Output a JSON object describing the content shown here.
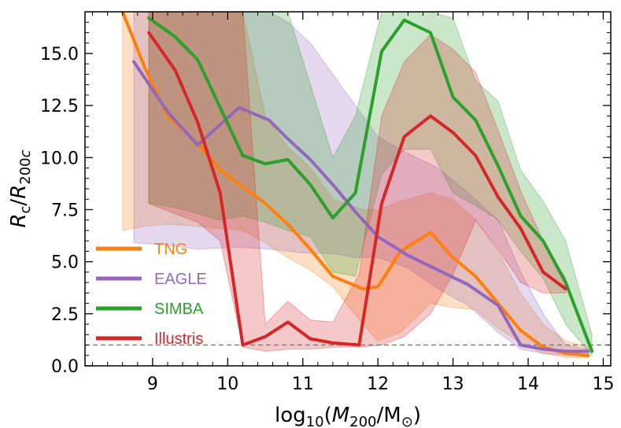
{
  "chart_data": {
    "type": "line",
    "xlabel": "log10(M200/M⊙)",
    "ylabel": "Rc/R200c",
    "xlim": [
      8.1,
      15.1
    ],
    "ylim": [
      0,
      17
    ],
    "x_ticks": [
      9,
      10,
      11,
      12,
      13,
      14,
      15
    ],
    "x_tick_labels": [
      "9",
      "10",
      "11",
      "12",
      "13",
      "14",
      "15"
    ],
    "y_ticks": [
      0,
      2.5,
      5,
      7.5,
      10,
      12.5,
      15
    ],
    "y_tick_labels": [
      "0.0",
      "2.5",
      "5.0",
      "7.5",
      "10.0",
      "12.5",
      "15.0"
    ],
    "reference_line": {
      "y": 1.0,
      "style": "dashed",
      "color": "#808080"
    },
    "legend_position": "lower-left",
    "series": [
      {
        "name": "TNG",
        "color": "#ff7f0e",
        "x": [
          8.6,
          8.9,
          9.2,
          9.6,
          9.9,
          10.2,
          10.5,
          10.8,
          11.1,
          11.4,
          11.8,
          12.0,
          12.3,
          12.7,
          13.0,
          13.3,
          13.6,
          13.9,
          14.2,
          14.5,
          14.8
        ],
        "y": [
          17.0,
          14.3,
          12.0,
          10.7,
          9.4,
          8.6,
          7.8,
          6.8,
          5.6,
          4.3,
          3.7,
          3.8,
          5.5,
          6.4,
          5.2,
          4.3,
          3.0,
          1.7,
          0.9,
          0.6,
          0.5
        ],
        "lower": [
          6.5,
          6.7,
          6.8,
          6.7,
          6.6,
          6.5,
          5.9,
          5.2,
          4.6,
          3.8,
          2.0,
          1.2,
          1.6,
          3.0,
          2.8,
          2.7,
          1.8,
          1.1,
          0.6,
          0.4,
          0.4
        ],
        "upper": [
          17.0,
          17.0,
          17.0,
          17.0,
          17.0,
          17.0,
          12.0,
          10.5,
          9.5,
          8.0,
          7.5,
          7.5,
          7.9,
          8.3,
          8.0,
          7.0,
          5.5,
          3.5,
          2.0,
          1.2,
          0.9
        ]
      },
      {
        "name": "EAGLE",
        "color": "#9467bd",
        "x": [
          8.75,
          9.2,
          9.6,
          10.15,
          10.55,
          10.8,
          11.1,
          11.4,
          11.7,
          12.0,
          12.4,
          12.8,
          13.2,
          13.6,
          13.9,
          14.2,
          14.5,
          14.8
        ],
        "y": [
          14.6,
          12.2,
          10.6,
          12.4,
          11.8,
          10.9,
          9.9,
          8.7,
          7.4,
          6.2,
          5.3,
          4.6,
          3.9,
          2.9,
          1.0,
          0.8,
          0.7,
          0.7
        ],
        "lower": [
          5.9,
          5.8,
          5.6,
          5.7,
          5.6,
          5.5,
          5.4,
          5.4,
          5.2,
          5.2,
          4.7,
          3.7,
          2.9,
          1.6,
          0.8,
          0.6,
          0.5,
          0.5
        ],
        "upper": [
          17.0,
          17.0,
          17.0,
          17.0,
          17.0,
          16.5,
          15.5,
          14.0,
          12.5,
          11.0,
          10.2,
          9.5,
          8.3,
          7.0,
          4.5,
          2.5,
          1.0,
          0.8
        ]
      },
      {
        "name": "SIMBA",
        "color": "#2ca02c",
        "x": [
          8.95,
          9.3,
          9.6,
          9.9,
          10.2,
          10.5,
          10.8,
          11.1,
          11.4,
          11.7,
          12.05,
          12.35,
          12.7,
          13.0,
          13.3,
          13.6,
          13.9,
          14.2,
          14.5,
          14.85
        ],
        "y": [
          16.7,
          15.8,
          14.7,
          12.4,
          10.1,
          9.7,
          9.9,
          8.7,
          7.1,
          8.3,
          15.1,
          16.6,
          16.0,
          12.9,
          11.8,
          9.6,
          7.2,
          6.0,
          4.0,
          0.7
        ],
        "lower": [
          7.8,
          7.6,
          7.3,
          7.0,
          7.2,
          6.9,
          6.5,
          6.2,
          4.5,
          4.3,
          9.2,
          10.4,
          10.4,
          8.3,
          7.7,
          7.0,
          5.5,
          4.2,
          2.0,
          0.5
        ],
        "upper": [
          17.0,
          17.0,
          17.0,
          17.0,
          17.0,
          17.0,
          17.0,
          13.5,
          10.0,
          12.0,
          17.0,
          17.0,
          17.0,
          16.7,
          13.7,
          12.7,
          9.4,
          7.9,
          6.0,
          1.5
        ]
      },
      {
        "name": "Illustris",
        "color": "#d62728",
        "x": [
          8.95,
          9.3,
          9.6,
          9.9,
          10.2,
          10.5,
          10.8,
          11.1,
          11.4,
          11.75,
          12.05,
          12.35,
          12.7,
          13.0,
          13.3,
          13.6,
          13.9,
          14.2,
          14.5
        ],
        "y": [
          16.0,
          14.2,
          11.7,
          8.3,
          1.0,
          1.4,
          2.1,
          1.3,
          1.1,
          1.0,
          7.8,
          11.0,
          12.0,
          11.2,
          10.1,
          8.1,
          6.6,
          4.5,
          3.7
        ],
        "lower": [
          7.8,
          7.3,
          6.9,
          6.0,
          0.9,
          0.7,
          0.8,
          0.8,
          0.9,
          0.9,
          1.0,
          1.4,
          2.5,
          4.4,
          7.0,
          5.6,
          4.0,
          3.5,
          3.5
        ],
        "upper": [
          17.0,
          17.0,
          17.0,
          17.0,
          17.0,
          2.0,
          3.1,
          2.2,
          2.1,
          4.4,
          12.0,
          14.6,
          15.9,
          15.2,
          14.1,
          11.3,
          8.4,
          6.0,
          4.2
        ]
      }
    ]
  }
}
